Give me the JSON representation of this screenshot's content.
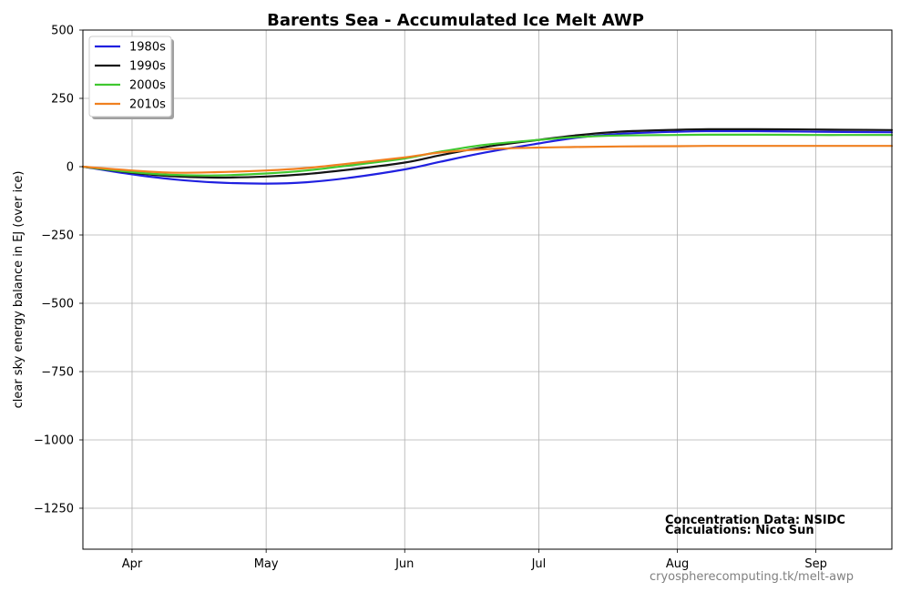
{
  "chart_data": {
    "type": "line",
    "title": "Barents Sea - Accumulated Ice Melt AWP",
    "xlabel": "",
    "ylabel": "clear sky energy balance in  EJ (over ice)",
    "x_tick_labels": [
      "Apr",
      "May",
      "Jun",
      "Jul",
      "Aug",
      "Sep"
    ],
    "x_tick_days": [
      91,
      121,
      152,
      182,
      213,
      244
    ],
    "xlim": [
      80,
      261
    ],
    "ylim": [
      -1400,
      500
    ],
    "y_ticks": [
      500,
      250,
      0,
      -250,
      -500,
      -750,
      -1000,
      -1250
    ],
    "y_tick_labels": [
      "500",
      "250",
      "0",
      "−250",
      "−500",
      "−750",
      "−1000",
      "−1250"
    ],
    "grid": true,
    "legend_position": "upper left",
    "x_unit": "day of year",
    "series": [
      {
        "name": "1980s",
        "color": "#2020e0",
        "x": [
          80,
          91,
          100,
          110,
          121,
          130,
          140,
          152,
          160,
          170,
          182,
          190,
          200,
          213,
          220,
          230,
          244,
          250,
          261
        ],
        "values": [
          0,
          -28,
          -46,
          -58,
          -62,
          -57,
          -40,
          -10,
          18,
          52,
          85,
          105,
          120,
          128,
          130,
          130,
          128,
          127,
          126
        ]
      },
      {
        "name": "1990s",
        "color": "#141414",
        "x": [
          80,
          91,
          100,
          110,
          121,
          130,
          140,
          152,
          160,
          170,
          182,
          190,
          200,
          213,
          220,
          230,
          244,
          250,
          261
        ],
        "values": [
          0,
          -22,
          -35,
          -40,
          -36,
          -27,
          -10,
          15,
          42,
          72,
          98,
          114,
          128,
          135,
          137,
          137,
          136,
          135,
          134
        ]
      },
      {
        "name": "2000s",
        "color": "#40c830",
        "x": [
          80,
          91,
          100,
          110,
          121,
          130,
          140,
          152,
          160,
          170,
          182,
          190,
          200,
          213,
          220,
          230,
          244,
          250,
          261
        ],
        "values": [
          0,
          -20,
          -30,
          -32,
          -25,
          -14,
          5,
          30,
          55,
          80,
          98,
          108,
          114,
          116,
          117,
          117,
          116,
          116,
          116
        ]
      },
      {
        "name": "2010s",
        "color": "#f08020",
        "x": [
          80,
          91,
          100,
          110,
          121,
          130,
          140,
          152,
          160,
          170,
          182,
          190,
          200,
          213,
          220,
          230,
          244,
          250,
          261
        ],
        "values": [
          0,
          -14,
          -22,
          -20,
          -14,
          -5,
          12,
          34,
          52,
          64,
          70,
          72,
          74,
          75,
          76,
          76,
          76,
          76,
          76
        ]
      }
    ],
    "annotations": [
      "Concentration Data: NSIDC",
      "Calculations: Nico Sun"
    ],
    "watermark": "cryospherecomputing.tk/melt-awp"
  }
}
